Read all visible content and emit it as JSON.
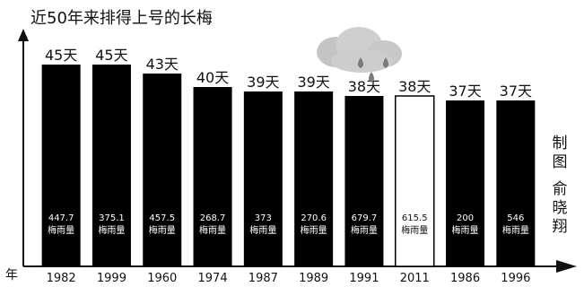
{
  "title": "近50年来排得上号的长梅",
  "credit": {
    "l1": "制",
    "l2": "图",
    "l3": "俞",
    "l4": "晓",
    "l5": "翔"
  },
  "axis_label_left": "年",
  "colors": {
    "bar": "#000000",
    "highlight_fill": "#ffffff",
    "axis": "#111111",
    "cloud": "#c8c8c8",
    "drop": "#777777",
    "text": "#111111"
  },
  "chart_data": {
    "type": "bar",
    "title": "近50年来排得上号的长梅",
    "unit": "天",
    "categories": [
      "1982",
      "1999",
      "1960",
      "1974",
      "1987",
      "1989",
      "1991",
      "2011",
      "1986",
      "1996"
    ],
    "values": [
      45,
      45,
      43,
      40,
      39,
      39,
      38,
      38,
      37,
      37
    ],
    "value_labels": [
      "45天",
      "45天",
      "43天",
      "40天",
      "39天",
      "39天",
      "38天",
      "38天",
      "37天",
      "37天"
    ],
    "rainfall_labels": [
      "447.7",
      "375.1",
      "457.5",
      "268.7",
      "373",
      "270.6",
      "679.7",
      "615.5",
      "200",
      "546"
    ],
    "rainfall_caption": "梅雨量",
    "highlighted": "2011",
    "ylim": [
      0,
      48
    ],
    "grid": false,
    "legend": "none"
  }
}
